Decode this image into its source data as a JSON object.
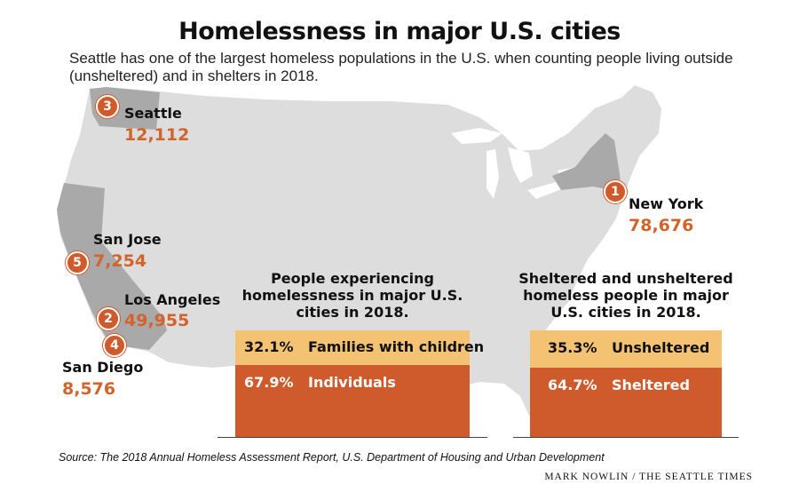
{
  "title": "Homelessness in major U.S. cities",
  "subtitle": "Seattle has one of the largest homeless populations in the U.S. when counting people living outside (unsheltered) and in shelters in 2018.",
  "colors": {
    "map_land": "#dddddd",
    "highlight_state": "#a9a9a9",
    "accent": "#cf5a2b",
    "light_segment": "#f3c373"
  },
  "cities": [
    {
      "rank": "1",
      "name": "New York",
      "value": "78,676"
    },
    {
      "rank": "2",
      "name": "Los Angeles",
      "value": "49,955"
    },
    {
      "rank": "3",
      "name": "Seattle",
      "value": "12,112"
    },
    {
      "rank": "4",
      "name": "San Diego",
      "value": "8,576"
    },
    {
      "rank": "5",
      "name": "San Jose",
      "value": "7,254"
    }
  ],
  "chart_data": [
    {
      "type": "bar",
      "title": "People experiencing homelessness in major U.S. cities in 2018.",
      "categories": [
        "Families with children",
        "Individuals"
      ],
      "values": [
        32.1,
        67.9
      ],
      "value_labels": [
        "32.1%",
        "67.9%"
      ],
      "unit": "%"
    },
    {
      "type": "bar",
      "title": "Sheltered and unsheltered homeless people in major U.S. cities in 2018.",
      "categories": [
        "Unsheltered",
        "Sheltered"
      ],
      "values": [
        35.3,
        64.7
      ],
      "value_labels": [
        "35.3%",
        "64.7%"
      ],
      "unit": "%"
    }
  ],
  "source": "Source: The 2018 Annual Homeless Assessment Report, U.S. Department of Housing and Urban Development",
  "credit": "MARK NOWLIN / THE SEATTLE TIMES"
}
